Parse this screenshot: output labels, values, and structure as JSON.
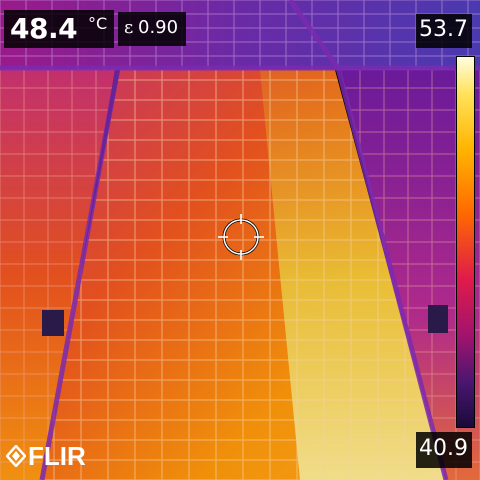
{
  "hud": {
    "spot_temperature": "48.4",
    "temperature_unit": "°C",
    "emissivity_symbol": "ε",
    "emissivity_value": "0.90"
  },
  "scale": {
    "max": "53.7",
    "min": "40.9"
  },
  "brand": {
    "logo_text": "FLIR"
  },
  "icons": {
    "crosshair": "spot-meter-crosshair-icon",
    "logo_glyph": "flir-diamond-icon"
  },
  "colors": {
    "hud_background": "#000000",
    "hud_text": "#ffffff",
    "hot": "#fff6c0",
    "warm": "#ff8a00",
    "cool": "#7a1a8a"
  }
}
